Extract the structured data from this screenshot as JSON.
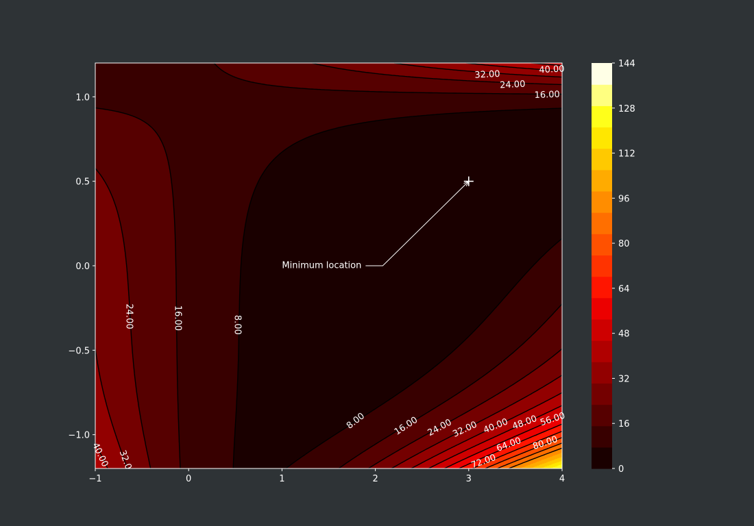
{
  "chart_data": {
    "type": "contourf",
    "function": "(1.5 - x + x*y)^2 + (2.25 - x + x*y^2)^2 + (2.625 - x + x*y^3)^2",
    "xlim": [
      -1,
      4
    ],
    "ylim": [
      -1.2,
      1.2
    ],
    "x_ticks": [
      "−1",
      "0",
      "1",
      "2",
      "3",
      "4"
    ],
    "x_tick_values": [
      -1,
      0,
      1,
      2,
      3,
      4
    ],
    "y_ticks": [
      "−1.0",
      "−0.5",
      "0.0",
      "0.5",
      "1.0"
    ],
    "y_tick_values": [
      -1.0,
      -0.5,
      0.0,
      0.5,
      1.0
    ],
    "levels": [
      0,
      8,
      16,
      24,
      32,
      40,
      48,
      56,
      64,
      72,
      80,
      88,
      96,
      104,
      112,
      120,
      128,
      136,
      144
    ],
    "line_levels": [
      8,
      16,
      24,
      32,
      40,
      48,
      56,
      64,
      72,
      80,
      88,
      96
    ],
    "colormap": [
      "#1a0000",
      "#380000",
      "#560000",
      "#740000",
      "#920000",
      "#b00000",
      "#ce0000",
      "#ec0000",
      "#ff1500",
      "#ff3300",
      "#ff5100",
      "#ff6f00",
      "#ff8d00",
      "#ffab00",
      "#ffc900",
      "#ffe700",
      "#ffff1a",
      "#ffff80",
      "#ffffe6"
    ],
    "colorbar_ticks": [
      "0",
      "16",
      "32",
      "48",
      "64",
      "80",
      "96",
      "112",
      "128",
      "144"
    ],
    "colorbar_tick_values": [
      0,
      16,
      32,
      48,
      64,
      80,
      96,
      112,
      128,
      144
    ],
    "contour_labels": [
      {
        "text": "8.00",
        "x": 0.52,
        "y": -0.35,
        "rot": 90
      },
      {
        "text": "16.00",
        "x": -0.12,
        "y": -0.31,
        "rot": 90
      },
      {
        "text": "24.00",
        "x": -0.64,
        "y": -0.3,
        "rot": 90
      },
      {
        "text": "8.00",
        "x": 1.79,
        "y": -0.92,
        "rot": -38
      },
      {
        "text": "16.00",
        "x": 2.33,
        "y": -0.95,
        "rot": -33
      },
      {
        "text": "24.00",
        "x": 2.69,
        "y": -0.96,
        "rot": -28
      },
      {
        "text": "32.00",
        "x": 2.96,
        "y": -0.97,
        "rot": -25
      },
      {
        "text": "40.00",
        "x": 3.29,
        "y": -0.95,
        "rot": -22
      },
      {
        "text": "48.00",
        "x": 3.6,
        "y": -0.93,
        "rot": -20
      },
      {
        "text": "56.00",
        "x": 3.9,
        "y": -0.91,
        "rot": -18
      },
      {
        "text": "64.00",
        "x": 3.43,
        "y": -1.06,
        "rot": -20
      },
      {
        "text": "72.00",
        "x": 3.16,
        "y": -1.16,
        "rot": -20
      },
      {
        "text": "80.00",
        "x": 3.82,
        "y": -1.05,
        "rot": -18
      },
      {
        "text": "40.00",
        "x": -0.95,
        "y": -1.12,
        "rot": 65
      },
      {
        "text": "32.0",
        "x": -0.68,
        "y": -1.15,
        "rot": 70
      },
      {
        "text": "32.00",
        "x": 3.2,
        "y": 1.13,
        "rot": -3
      },
      {
        "text": "24.00",
        "x": 3.47,
        "y": 1.07,
        "rot": -3
      },
      {
        "text": "16.00",
        "x": 3.84,
        "y": 1.01,
        "rot": -2
      },
      {
        "text": "40.00",
        "x": 3.89,
        "y": 1.16,
        "rot": -3
      }
    ],
    "annotation": {
      "text": "Minimum location",
      "x": 3,
      "y": 0.5,
      "text_x": 1,
      "text_y": 0.0
    },
    "marker": {
      "symbol": "+",
      "x": 3,
      "y": 0.5
    },
    "grid": false,
    "colorbar": "right"
  },
  "colors": {
    "background": "#2e3336",
    "text": "#ffffff",
    "contour_line": "#000000"
  }
}
